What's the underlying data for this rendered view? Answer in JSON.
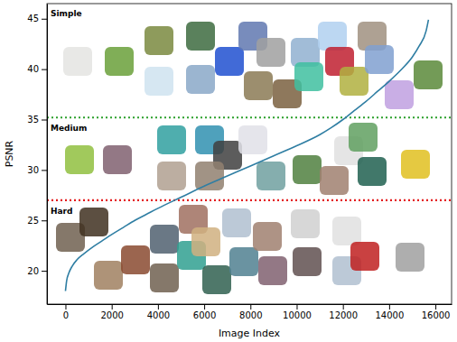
{
  "chart_data": {
    "type": "line",
    "x_label": "Image Index",
    "y_label": "PSNR",
    "x": [
      0,
      50,
      150,
      300,
      500,
      800,
      1200,
      1600,
      2000,
      2500,
      3000,
      3500,
      4000,
      5000,
      6000,
      7000,
      8000,
      9000,
      10000,
      11000,
      11500,
      12000,
      12500,
      13000,
      13500,
      14000,
      14500,
      15000,
      15300,
      15600,
      15700
    ],
    "values": [
      18.0,
      19.0,
      19.8,
      20.5,
      21.1,
      21.7,
      22.4,
      23.0,
      23.6,
      24.3,
      25.0,
      25.6,
      26.2,
      27.3,
      28.4,
      29.4,
      30.4,
      31.4,
      32.4,
      33.5,
      34.2,
      35.0,
      35.9,
      36.8,
      37.8,
      38.8,
      39.9,
      41.2,
      42.3,
      43.8,
      44.9
    ],
    "color": "#2f7ea3",
    "line_style": "solid",
    "grid": false,
    "xlim": [
      -800,
      16700
    ],
    "ylim": [
      16.7,
      46.5
    ],
    "xticks": [
      0,
      2000,
      4000,
      6000,
      8000,
      10000,
      12000,
      14000,
      16000
    ],
    "yticks": [
      20,
      25,
      30,
      35,
      40,
      45
    ],
    "regions": [
      {
        "label": "Simple"
      },
      {
        "label": "Medium"
      },
      {
        "label": "Hard"
      }
    ],
    "thresholds": [
      {
        "value": 35.2,
        "color": "#2ca02c",
        "line_style": "dotted"
      },
      {
        "value": 27.0,
        "color": "#e41a1c",
        "line_style": "dotted"
      }
    ]
  }
}
